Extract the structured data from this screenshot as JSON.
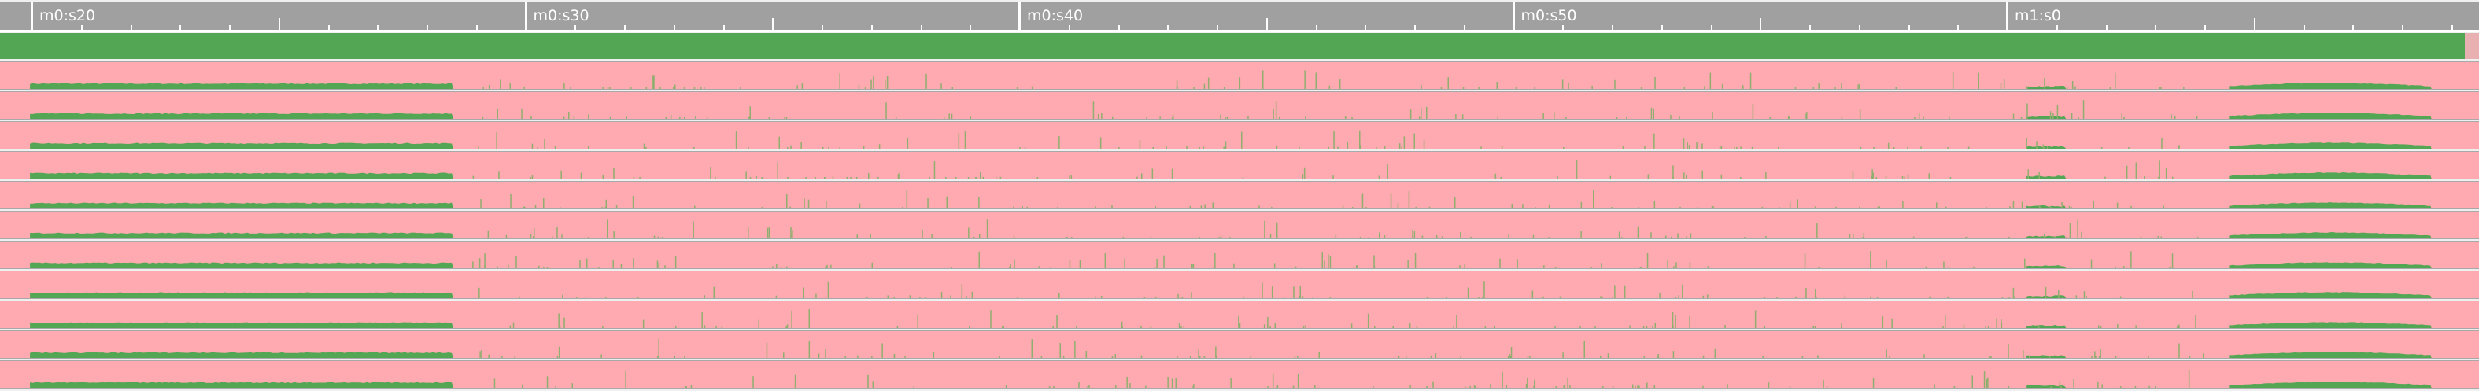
{
  "timeline": {
    "labels": [
      "m0:s20",
      "m0:s30",
      "m0:s40",
      "m0:s50",
      "m1:s0"
    ],
    "major_seconds": [
      20,
      30,
      40,
      50,
      60
    ],
    "start_seconds": 19.95,
    "end_seconds": 69.9,
    "minor_divisions": 10
  },
  "colors": {
    "ruler": "#a0a0a0",
    "active": "#53a653",
    "idle": "#ffa9b0",
    "spike": "#8fae6f"
  },
  "tracks": {
    "count": 11,
    "active_ranges_seconds": [
      [
        19.97,
        28.54
      ],
      [
        60.4,
        61.2
      ],
      [
        64.5,
        68.6
      ]
    ]
  }
}
